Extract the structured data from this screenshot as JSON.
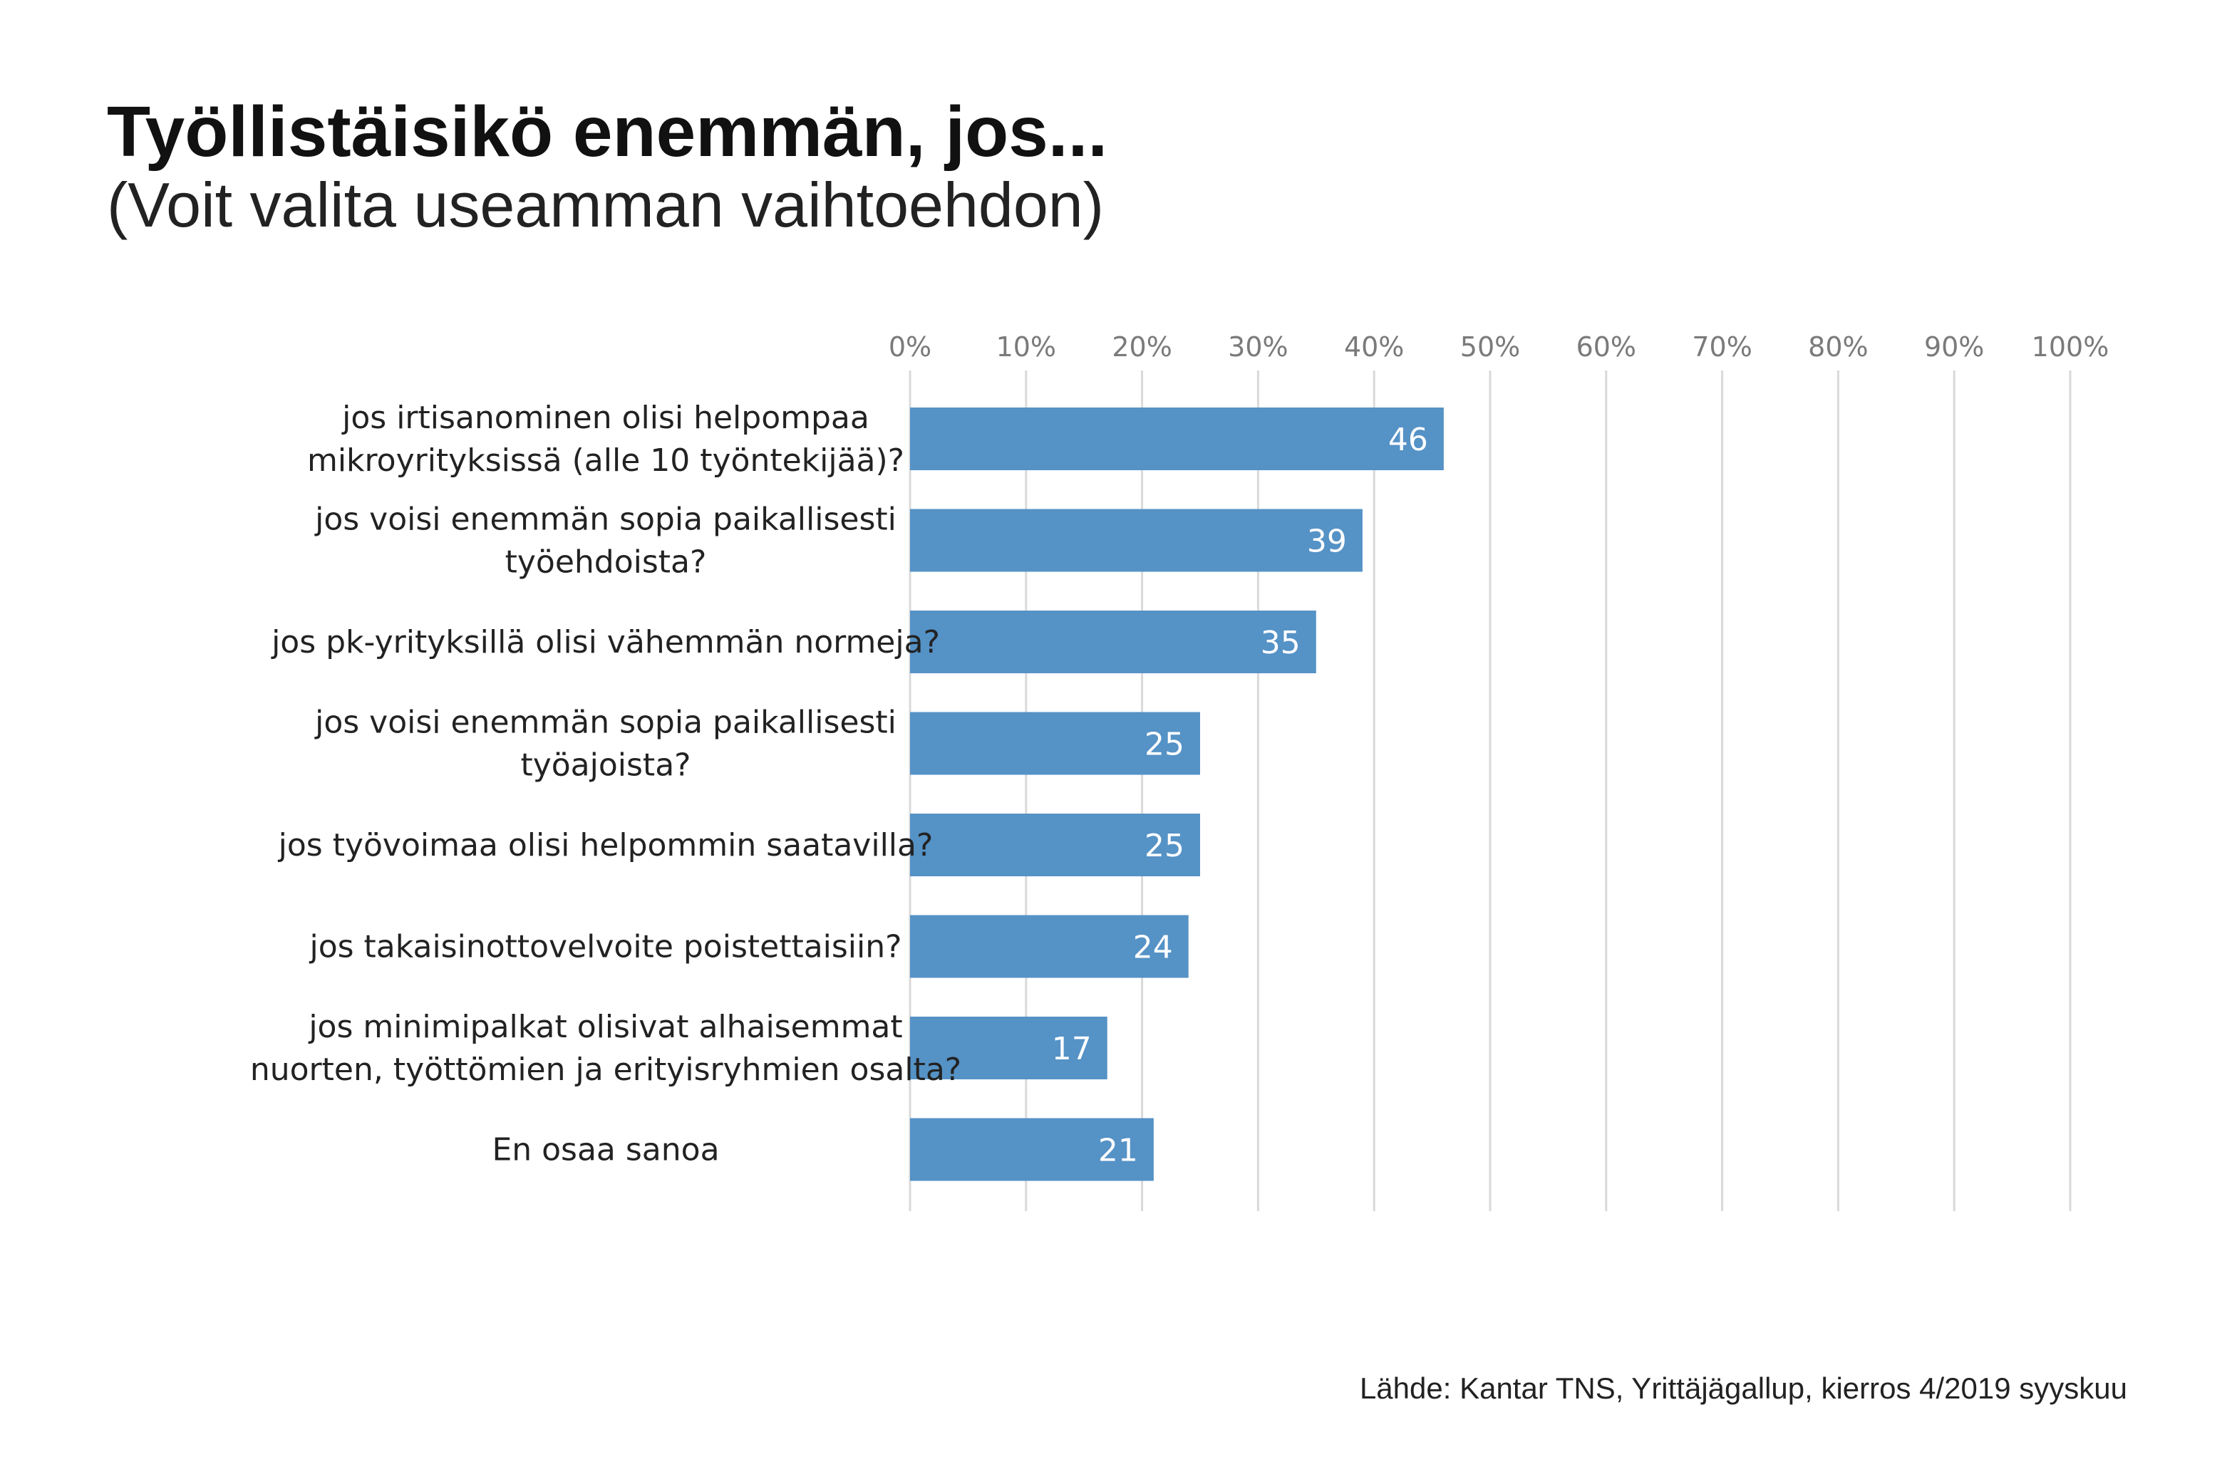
{
  "title": "Työllistäisikö enemmän, jos...",
  "subtitle": "(Voit valita useamman vaihtoehdon)",
  "source": "Lähde: Kantar TNS, Yrittäjägallup, kierros 4/2019 syyskuu",
  "colors": {
    "bar": "#5592c6",
    "grid": "#d9d9d9",
    "tick_text": "#7a7a7a",
    "label_text": "#222222"
  },
  "chart_data": {
    "type": "bar",
    "orientation": "horizontal",
    "title": "Työllistäisikö enemmän, jos...",
    "subtitle": "(Voit valita useamman vaihtoehdon)",
    "xlim": [
      0,
      100
    ],
    "x_ticks": [
      "0%",
      "10%",
      "20%",
      "30%",
      "40%",
      "50%",
      "60%",
      "70%",
      "80%",
      "90%",
      "100%"
    ],
    "axis_position": "top",
    "grid": true,
    "categories": [
      [
        "jos irtisanominen olisi helpompaa",
        "mikroyrityksissä (alle 10 työntekijää)?"
      ],
      [
        "jos voisi enemmän sopia paikallisesti",
        "työehdoista?"
      ],
      [
        "jos pk-yrityksillä olisi vähemmän normeja?"
      ],
      [
        "jos voisi enemmän sopia paikallisesti",
        "työajoista?"
      ],
      [
        "jos työvoimaa olisi helpommin saatavilla?"
      ],
      [
        "jos takaisinottovelvoite poistettaisiin?"
      ],
      [
        "jos minimipalkat olisivat alhaisemmat",
        "nuorten, työttömien ja erityisryhmien osalta?"
      ],
      [
        "En osaa sanoa"
      ]
    ],
    "values": [
      46,
      39,
      35,
      25,
      25,
      24,
      17,
      21
    ],
    "value_labels": [
      "46",
      "39",
      "35",
      "25",
      "25",
      "24",
      "17",
      "21"
    ]
  }
}
